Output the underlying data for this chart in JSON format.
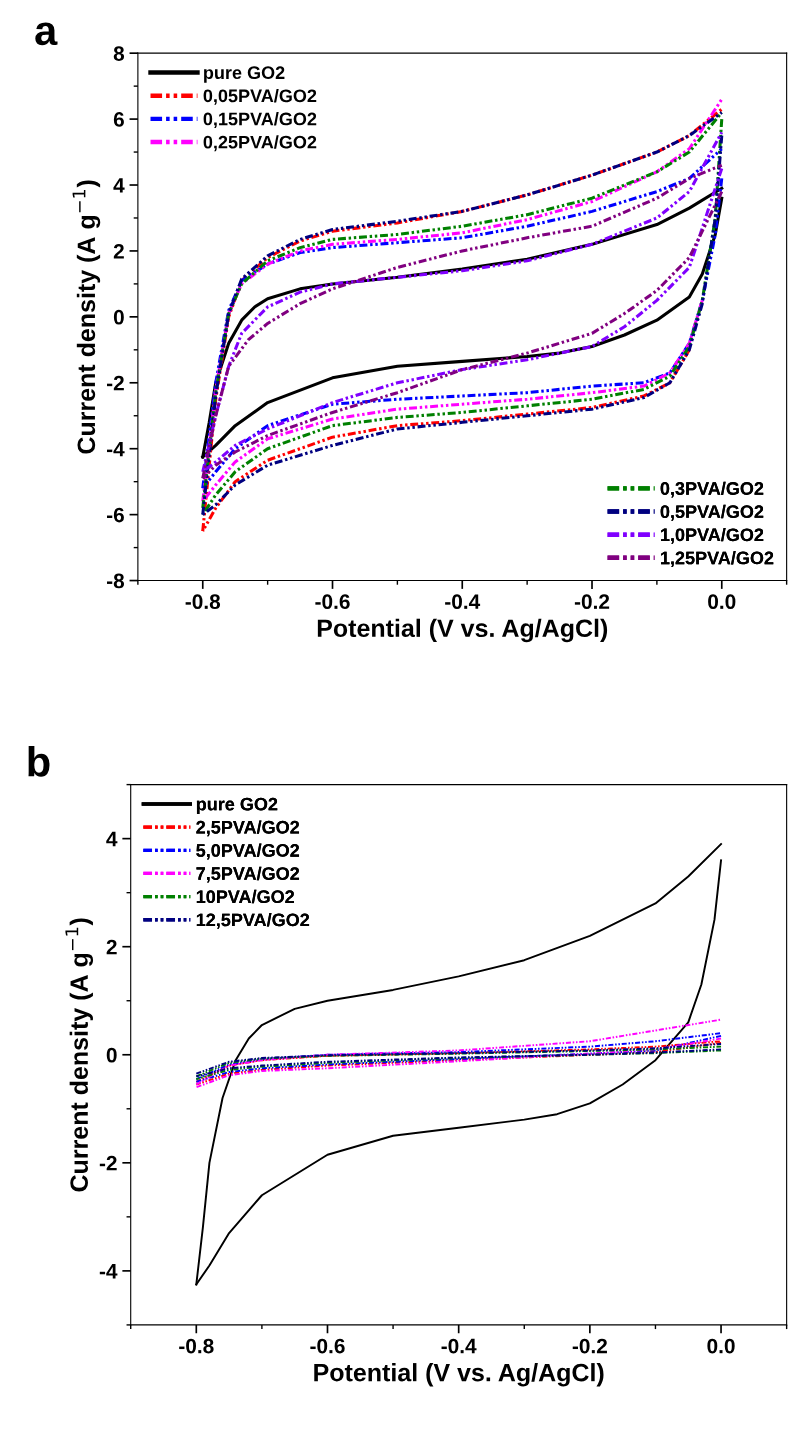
{
  "chart_data": [
    {
      "type": "line",
      "title": "a",
      "xlabel": "Potential (V vs. Ag/AgCl)",
      "ylabel": "Current density (A g$^{−1}$)",
      "xlim": [
        -0.9,
        0.1
      ],
      "ylim": [
        -8,
        8
      ],
      "xticks": [
        -0.8,
        -0.6,
        -0.4,
        -0.2,
        {
          "value": 0,
          "label": "0.0"
        }
      ],
      "yticks": [
        -8,
        -6,
        -4,
        -2,
        0,
        2,
        4,
        6,
        8
      ],
      "legend": [
        "top left",
        "bottom right"
      ],
      "grid": false,
      "series": [
        {
          "name": "pure GO2",
          "color": "#000000",
          "line_style": "solid",
          "x": [
            -0.8,
            -0.79,
            -0.78,
            -0.76,
            -0.74,
            -0.72,
            -0.7,
            -0.65,
            -0.6,
            -0.5,
            -0.4,
            -0.3,
            -0.2,
            -0.1,
            -0.05,
            0.0
          ],
          "values": [
            -4.25,
            -3.2,
            -2.0,
            -0.8,
            -0.1,
            0.3,
            0.55,
            0.85,
            1.0,
            1.2,
            1.45,
            1.75,
            2.2,
            2.8,
            3.3,
            3.9
          ]
        },
        {
          "color": "#000000",
          "line_style": "solid",
          "x": [
            0.0,
            -0.01,
            -0.03,
            -0.05,
            -0.1,
            -0.15,
            -0.2,
            -0.25,
            -0.3,
            -0.4,
            -0.5,
            -0.6,
            -0.7,
            -0.75,
            -0.78,
            -0.8
          ],
          "values": [
            3.6,
            2.5,
            1.3,
            0.6,
            -0.1,
            -0.55,
            -0.9,
            -1.1,
            -1.2,
            -1.35,
            -1.5,
            -1.85,
            -2.6,
            -3.3,
            -3.9,
            -4.25
          ]
        },
        {
          "name": "0,05PVA/GO2",
          "color": "#ff0000",
          "line_style": "dashdot",
          "x": [
            -0.8,
            -0.78,
            -0.76,
            -0.74,
            -0.7,
            -0.65,
            -0.6,
            -0.5,
            -0.4,
            -0.3,
            -0.2,
            -0.1,
            -0.05,
            0.0
          ],
          "values": [
            -6.5,
            -2.5,
            0.0,
            1.1,
            1.8,
            2.3,
            2.6,
            2.85,
            3.2,
            3.7,
            4.3,
            5.0,
            5.5,
            6.3
          ]
        },
        {
          "color": "#ff0000",
          "line_style": "dashdot",
          "x": [
            -0.05,
            -0.08,
            -0.12,
            -0.2,
            -0.3,
            -0.4,
            -0.5,
            -0.6,
            -0.7,
            -0.75,
            -0.78,
            -0.8
          ],
          "values": [
            -1.0,
            -2.0,
            -2.4,
            -2.75,
            -2.95,
            -3.15,
            -3.3,
            -3.65,
            -4.35,
            -5.0,
            -5.8,
            -6.5
          ]
        },
        {
          "name": "0,15PVA/GO2",
          "color": "#0000ff",
          "line_style": "dashdot",
          "x": [
            -0.8,
            -0.78,
            -0.76,
            -0.74,
            -0.7,
            -0.65,
            -0.6,
            -0.5,
            -0.4,
            -0.3,
            -0.2,
            -0.1,
            -0.05,
            0.0
          ],
          "values": [
            -5.2,
            -2.0,
            0.2,
            1.1,
            1.6,
            1.95,
            2.1,
            2.25,
            2.4,
            2.75,
            3.2,
            3.8,
            4.2,
            5.1
          ]
        },
        {
          "color": "#0000ff",
          "line_style": "dashdot",
          "x": [
            0.0,
            -0.01,
            -0.03,
            -0.05,
            -0.08,
            -0.12,
            -0.2,
            -0.3,
            -0.4,
            -0.5,
            -0.6,
            -0.7,
            -0.75,
            -0.78,
            -0.8
          ],
          "values": [
            4.2,
            2.5,
            0.5,
            -0.8,
            -1.7,
            -2.0,
            -2.1,
            -2.3,
            -2.4,
            -2.5,
            -2.65,
            -3.3,
            -4.0,
            -4.7,
            -5.2
          ]
        },
        {
          "name": "0,25PVA/GO2",
          "color": "#ff00ff",
          "line_style": "dashdot",
          "x": [
            -0.8,
            -0.78,
            -0.76,
            -0.74,
            -0.7,
            -0.65,
            -0.6,
            -0.5,
            -0.4,
            -0.3,
            -0.2,
            -0.1,
            -0.05,
            0.0
          ],
          "values": [
            -5.6,
            -2.2,
            0.1,
            1.0,
            1.6,
            2.0,
            2.2,
            2.35,
            2.55,
            2.95,
            3.5,
            4.4,
            5.1,
            6.6
          ]
        },
        {
          "color": "#ff00ff",
          "line_style": "dashdot",
          "x": [
            -0.03,
            -0.05,
            -0.08,
            -0.12,
            -0.2,
            -0.3,
            -0.4,
            -0.5,
            -0.6,
            -0.7,
            -0.75,
            -0.78,
            -0.8
          ],
          "values": [
            0.5,
            -0.8,
            -1.7,
            -2.1,
            -2.3,
            -2.5,
            -2.65,
            -2.8,
            -3.1,
            -3.7,
            -4.4,
            -5.1,
            -5.6
          ]
        },
        {
          "name": "0,3PVA/GO2",
          "color": "#008000",
          "line_style": "dashdot",
          "x": [
            -0.8,
            -0.78,
            -0.76,
            -0.74,
            -0.7,
            -0.65,
            -0.6,
            -0.5,
            -0.4,
            -0.3,
            -0.2,
            -0.1,
            -0.05,
            0.0
          ],
          "values": [
            -5.8,
            -2.3,
            0.1,
            1.0,
            1.7,
            2.1,
            2.35,
            2.5,
            2.75,
            3.1,
            3.6,
            4.4,
            5.0,
            6.2
          ]
        },
        {
          "color": "#008000",
          "line_style": "dashdot",
          "x": [
            0.0,
            -0.01,
            -0.03,
            -0.05,
            -0.08,
            -0.12,
            -0.2,
            -0.3,
            -0.4,
            -0.5,
            -0.6,
            -0.7,
            -0.75,
            -0.78,
            -0.8
          ],
          "values": [
            6.0,
            3.0,
            0.5,
            -0.9,
            -1.8,
            -2.2,
            -2.5,
            -2.7,
            -2.9,
            -3.05,
            -3.3,
            -4.0,
            -4.7,
            -5.4,
            -6.0
          ]
        },
        {
          "name": "0,5PVA/GO2",
          "color": "#000080",
          "line_style": "dashdot",
          "x": [
            -0.8,
            -0.78,
            -0.76,
            -0.74,
            -0.7,
            -0.65,
            -0.6,
            -0.5,
            -0.4,
            -0.3,
            -0.2,
            -0.1,
            -0.05,
            0.0
          ],
          "values": [
            -6.0,
            -2.4,
            0.1,
            1.15,
            1.85,
            2.35,
            2.65,
            2.9,
            3.2,
            3.7,
            4.3,
            5.0,
            5.5,
            6.2
          ]
        },
        {
          "color": "#000080",
          "line_style": "dashdot",
          "x": [
            0.0,
            -0.01,
            -0.03,
            -0.05,
            -0.08,
            -0.12,
            -0.2,
            -0.3,
            -0.4,
            -0.5,
            -0.6,
            -0.7,
            -0.75,
            -0.78,
            -0.8
          ],
          "values": [
            5.5,
            3.0,
            0.4,
            -1.0,
            -2.0,
            -2.45,
            -2.8,
            -3.0,
            -3.2,
            -3.4,
            -3.9,
            -4.5,
            -5.1,
            -5.7,
            -6.0
          ]
        },
        {
          "name": "1,0PVA/GO2",
          "color": "#8000ff",
          "line_style": "dashdot",
          "x": [
            -0.8,
            -0.78,
            -0.76,
            -0.74,
            -0.7,
            -0.65,
            -0.6,
            -0.5,
            -0.4,
            -0.3,
            -0.2,
            -0.1,
            -0.05,
            0.0
          ],
          "values": [
            -4.7,
            -3.0,
            -1.5,
            -0.5,
            0.3,
            0.75,
            1.0,
            1.2,
            1.4,
            1.7,
            2.2,
            3.0,
            3.8,
            5.6
          ]
        },
        {
          "color": "#8000ff",
          "line_style": "dashdot",
          "x": [
            0.0,
            -0.05,
            -0.1,
            -0.15,
            -0.2,
            -0.3,
            -0.4,
            -0.5,
            -0.6,
            -0.7,
            -0.75,
            -0.78,
            -0.8
          ],
          "values": [
            4.5,
            1.5,
            0.5,
            -0.3,
            -0.9,
            -1.3,
            -1.6,
            -2.0,
            -2.6,
            -3.4,
            -3.9,
            -4.4,
            -4.7
          ]
        },
        {
          "name": "1,25PVA/GO2",
          "color": "#800080",
          "line_style": "dashdot",
          "x": [
            -0.8,
            -0.78,
            -0.76,
            -0.73,
            -0.7,
            -0.65,
            -0.6,
            -0.5,
            -0.4,
            -0.3,
            -0.2,
            -0.1,
            -0.05,
            0.0
          ],
          "values": [
            -4.9,
            -3.0,
            -1.5,
            -0.7,
            -0.2,
            0.4,
            0.85,
            1.5,
            2.0,
            2.4,
            2.75,
            3.6,
            4.2,
            4.6
          ]
        },
        {
          "color": "#800080",
          "line_style": "dashdot",
          "x": [
            0.0,
            -0.05,
            -0.1,
            -0.15,
            -0.2,
            -0.3,
            -0.4,
            -0.5,
            -0.6,
            -0.7,
            -0.75,
            -0.78,
            -0.8
          ],
          "values": [
            3.8,
            1.8,
            0.8,
            0.1,
            -0.5,
            -1.1,
            -1.6,
            -2.3,
            -2.9,
            -3.6,
            -4.1,
            -4.5,
            -4.9
          ]
        }
      ]
    },
    {
      "type": "line",
      "title": "b",
      "xlabel": "Potential (V vs. Ag/AgCl)",
      "ylabel": "Current density (A g$^{−1}$)",
      "xlim": [
        -0.9,
        0.1
      ],
      "ylim": [
        -5,
        5
      ],
      "xticks": [
        -0.8,
        -0.6,
        -0.4,
        -0.2,
        {
          "value": 0,
          "label": "0.0"
        }
      ],
      "yticks": [
        -4,
        -2,
        0,
        2,
        4
      ],
      "legend": [
        "top left"
      ],
      "grid": false,
      "series": [
        {
          "name": "pure GO2",
          "color": "#000000",
          "line_style": "solid",
          "x": [
            -0.8,
            -0.79,
            -0.78,
            -0.76,
            -0.74,
            -0.72,
            -0.7,
            -0.65,
            -0.6,
            -0.5,
            -0.4,
            -0.3,
            -0.2,
            -0.1,
            -0.05,
            0.0
          ],
          "values": [
            -4.25,
            -3.2,
            -2.0,
            -0.8,
            -0.1,
            0.3,
            0.55,
            0.85,
            1.0,
            1.2,
            1.45,
            1.75,
            2.2,
            2.8,
            3.3,
            3.9
          ]
        },
        {
          "color": "#000000",
          "line_style": "solid",
          "x": [
            0.0,
            -0.01,
            -0.03,
            -0.05,
            -0.1,
            -0.15,
            -0.2,
            -0.25,
            -0.3,
            -0.4,
            -0.5,
            -0.6,
            -0.7,
            -0.75,
            -0.78,
            -0.8
          ],
          "values": [
            3.6,
            2.5,
            1.3,
            0.6,
            -0.1,
            -0.55,
            -0.9,
            -1.1,
            -1.2,
            -1.35,
            -1.5,
            -1.85,
            -2.6,
            -3.3,
            -3.9,
            -4.25
          ]
        },
        {
          "name": "2,5PVA/GO2",
          "color": "#ff0000",
          "line_style": "dashdot",
          "x": [
            -0.8,
            -0.75,
            -0.7,
            -0.6,
            -0.4,
            -0.2,
            -0.1,
            0.0
          ],
          "values": [
            -0.5,
            -0.2,
            -0.1,
            -0.02,
            0.03,
            0.1,
            0.15,
            0.25
          ]
        },
        {
          "color": "#ff0000",
          "line_style": "dashdot",
          "x": [
            0.0,
            -0.1,
            -0.2,
            -0.4,
            -0.6,
            -0.7,
            -0.75,
            -0.8
          ],
          "values": [
            0.22,
            0.05,
            0.0,
            -0.1,
            -0.2,
            -0.28,
            -0.35,
            -0.55
          ]
        },
        {
          "name": "5,0PVA/GO2",
          "color": "#0000ff",
          "line_style": "dashdot",
          "x": [
            -0.8,
            -0.75,
            -0.7,
            -0.6,
            -0.4,
            -0.2,
            -0.1,
            0.0
          ],
          "values": [
            -0.45,
            -0.18,
            -0.08,
            0.0,
            0.05,
            0.15,
            0.25,
            0.4
          ]
        },
        {
          "color": "#0000ff",
          "line_style": "dashdot",
          "x": [
            0.0,
            -0.1,
            -0.2,
            -0.4,
            -0.6,
            -0.7,
            -0.75,
            -0.8
          ],
          "values": [
            0.35,
            0.08,
            0.02,
            -0.08,
            -0.18,
            -0.25,
            -0.32,
            -0.5
          ]
        },
        {
          "name": "7,5PVA/GO2",
          "color": "#ff00ff",
          "line_style": "dashdot",
          "x": [
            -0.8,
            -0.75,
            -0.7,
            -0.6,
            -0.4,
            -0.2,
            -0.1,
            0.0
          ],
          "values": [
            -0.55,
            -0.2,
            -0.1,
            0.0,
            0.08,
            0.25,
            0.45,
            0.65
          ]
        },
        {
          "color": "#ff00ff",
          "line_style": "dashdot",
          "x": [
            0.0,
            -0.1,
            -0.2,
            -0.4,
            -0.6,
            -0.7,
            -0.75,
            -0.8
          ],
          "values": [
            0.3,
            0.1,
            0.02,
            -0.12,
            -0.25,
            -0.3,
            -0.38,
            -0.6
          ]
        },
        {
          "name": "10PVA/GO2",
          "color": "#008000",
          "line_style": "dashdot",
          "x": [
            -0.8,
            -0.75,
            -0.7,
            -0.6,
            -0.4,
            -0.2,
            -0.1,
            0.0
          ],
          "values": [
            -0.4,
            -0.15,
            -0.07,
            -0.02,
            0.02,
            0.07,
            0.1,
            0.15
          ]
        },
        {
          "color": "#008000",
          "line_style": "dashdot",
          "x": [
            0.0,
            -0.1,
            -0.2,
            -0.4,
            -0.6,
            -0.7,
            -0.75,
            -0.8
          ],
          "values": [
            0.08,
            0.03,
            0.0,
            -0.06,
            -0.15,
            -0.22,
            -0.28,
            -0.45
          ]
        },
        {
          "name": "12,5PVA/GO2",
          "color": "#000080",
          "line_style": "dashdot",
          "x": [
            -0.8,
            -0.75,
            -0.7,
            -0.6,
            -0.4,
            -0.2,
            -0.1,
            0.0
          ],
          "values": [
            -0.35,
            -0.13,
            -0.06,
            -0.01,
            0.03,
            0.08,
            0.12,
            0.2
          ]
        },
        {
          "color": "#000080",
          "line_style": "dashdot",
          "x": [
            0.0,
            -0.1,
            -0.2,
            -0.4,
            -0.6,
            -0.7,
            -0.75,
            -0.8
          ],
          "values": [
            0.1,
            0.04,
            0.0,
            -0.05,
            -0.13,
            -0.2,
            -0.25,
            -0.4
          ]
        }
      ]
    }
  ]
}
